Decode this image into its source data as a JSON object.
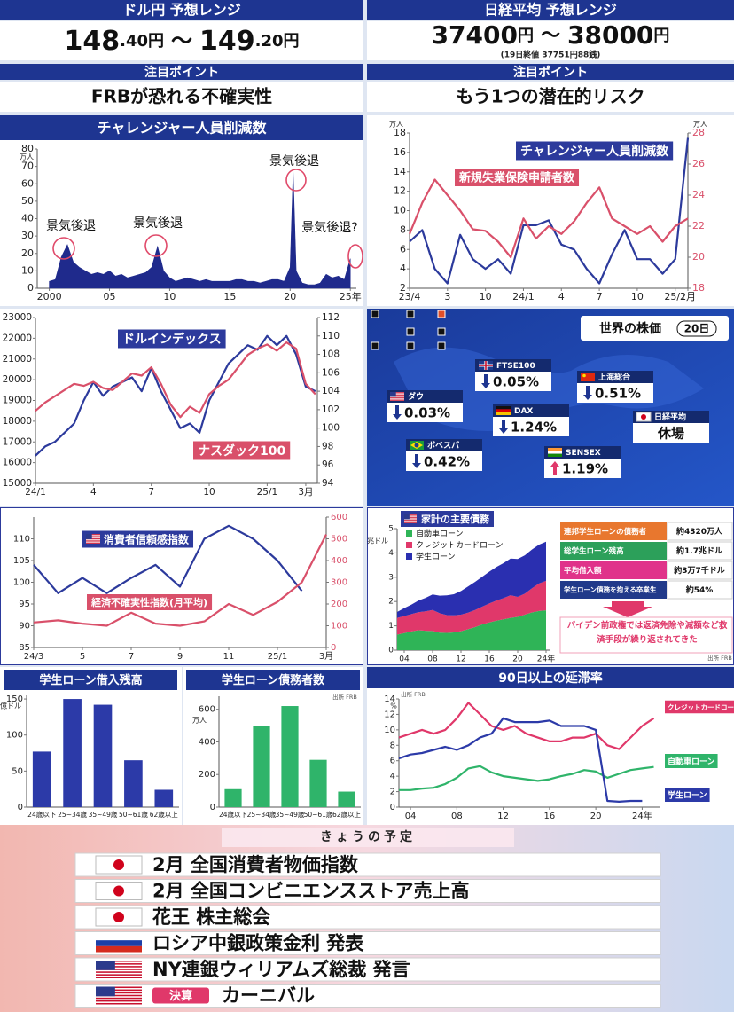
{
  "usdjpy": {
    "title": "ドル円 予想レンジ",
    "low": "148",
    "low_dec": ".40円",
    "sep": "～",
    "high": "149",
    "high_dec": ".20円"
  },
  "nikkei": {
    "title": "日経平均 予想レンジ",
    "low": "37400",
    "low_unit": "円",
    "sep": "～",
    "high": "38000",
    "high_unit": "円",
    "note": "(19日終値 37751円88銭)"
  },
  "points": [
    {
      "label": "注目ポイント",
      "text": "FRBが恐れる不確実性"
    },
    {
      "label": "注目ポイント",
      "text": "もう1つの潜在的リスク"
    }
  ],
  "world_stocks": {
    "title": "世界の株価",
    "date": "20日",
    "items": [
      {
        "name": "ダウ",
        "flag": "us",
        "change": "0.03%",
        "dir": "down"
      },
      {
        "name": "FTSE100",
        "flag": "uk",
        "change": "0.05%",
        "dir": "down"
      },
      {
        "name": "上海総合",
        "flag": "cn",
        "change": "0.51%",
        "dir": "down"
      },
      {
        "name": "DAX",
        "flag": "de",
        "change": "1.24%",
        "dir": "down"
      },
      {
        "name": "日経平均",
        "flag": "jp",
        "change": "休場"
      },
      {
        "name": "ボベスパ",
        "flag": "br",
        "change": "0.42%",
        "dir": "down"
      },
      {
        "name": "SENSEX",
        "flag": "in",
        "change": "1.19%",
        "dir": "up"
      }
    ]
  },
  "debt_table": {
    "rows": [
      [
        "連邦学生ローンの債務者",
        "約4320万人"
      ],
      [
        "総学生ローン残高",
        "約1.7兆ドル"
      ],
      [
        "平均借入額",
        "約3万7千ドル"
      ],
      [
        "学生ローン債務を抱える卒業生",
        "約54%"
      ]
    ],
    "note": "バイデン前政権では返済免除や減額など救済手段が繰り返されてきた"
  },
  "schedule": {
    "title": "きょうの予定",
    "items": [
      {
        "flag": "jp",
        "text": "2月 全国消費者物価指数"
      },
      {
        "flag": "jp",
        "text": "2月 全国コンビニエンスストア売上高"
      },
      {
        "flag": "jp",
        "text": "花王 株主総会"
      },
      {
        "flag": "ru",
        "text": "ロシア中銀政策金利 発表"
      },
      {
        "flag": "us",
        "text": "NY連銀ウィリアムズ総裁 発言"
      },
      {
        "flag": "us",
        "badge": "決算",
        "text": "カーニバル"
      }
    ]
  },
  "chart_data": [
    {
      "type": "area",
      "title": "チャレンジャー人員削減数",
      "yunit": "万人",
      "color": "#1f2a8c",
      "grid": false,
      "annotations": [
        "景気後退",
        "景気後退",
        "景気後退",
        "景気後退?"
      ],
      "x": [
        2000,
        2000.5,
        2001,
        2001.5,
        2002,
        2002.5,
        2003,
        2003.5,
        2004,
        2004.5,
        2005,
        2005.5,
        2006,
        2006.5,
        2007,
        2007.5,
        2008,
        2008.5,
        2009,
        2009.5,
        2010,
        2010.5,
        2011,
        2011.5,
        2012,
        2012.5,
        2013,
        2013.5,
        2014,
        2014.5,
        2015,
        2015.5,
        2016,
        2016.5,
        2017,
        2017.5,
        2018,
        2018.5,
        2019,
        2019.5,
        2020,
        2020.25,
        2020.5,
        2021,
        2021.5,
        2022,
        2022.5,
        2023,
        2023.5,
        2024,
        2024.5,
        2025
      ],
      "values": [
        4,
        5,
        18,
        25,
        15,
        12,
        10,
        8,
        9,
        8,
        10,
        7,
        8,
        6,
        7,
        8,
        9,
        12,
        24,
        10,
        6,
        4,
        5,
        6,
        5,
        4,
        5,
        4,
        4,
        4,
        4,
        5,
        5,
        4,
        4,
        3,
        4,
        5,
        5,
        4,
        12,
        67,
        10,
        3,
        2,
        2,
        3,
        8,
        6,
        7,
        5,
        17
      ],
      "xlim": [
        1999,
        2025.5
      ],
      "xticks": [
        2000,
        {
          "value": 2005,
          "label": "05"
        },
        {
          "value": 2010,
          "label": "10"
        },
        {
          "value": 2015,
          "label": "15"
        },
        {
          "value": 2020,
          "label": "20"
        },
        {
          "value": 2025,
          "label": "25年"
        }
      ],
      "ylim": [
        0,
        80
      ],
      "yticks": [
        0,
        10,
        20,
        30,
        40,
        50,
        60,
        70,
        80
      ]
    },
    {
      "type": "line",
      "yunit": "万人",
      "y2unit": "万人",
      "grid": false,
      "x": [
        0,
        1,
        2,
        3,
        4,
        5,
        6,
        7,
        8,
        9,
        10,
        11,
        12,
        13,
        14,
        15,
        16,
        17,
        18,
        19,
        20,
        21,
        22
      ],
      "series": [
        {
          "name": "チャレンジャー人員削減数",
          "color": "#2c3a9c",
          "values": [
            6.8,
            8,
            4,
            2.5,
            7.5,
            5,
            4,
            5,
            3.5,
            8.5,
            8.5,
            9,
            6.5,
            6,
            4,
            2.5,
            5.5,
            8,
            5,
            5,
            3.5,
            5,
            17.5
          ]
        },
        {
          "name": "新規失業保険申請者数",
          "color": "#d9506a",
          "axis": "y2",
          "values": [
            21.5,
            23.5,
            25,
            24,
            23,
            21.8,
            21.7,
            21,
            20,
            22.5,
            21.2,
            22,
            21.5,
            22.3,
            23.5,
            24.5,
            22.5,
            22,
            21.5,
            22,
            21,
            22,
            22.5
          ]
        }
      ],
      "xlim": [
        0,
        22
      ],
      "xticks": [
        {
          "value": 0,
          "label": "23/4"
        },
        3,
        {
          "value": 6,
          "label": "10"
        },
        {
          "value": 9,
          "label": "24/1"
        },
        {
          "value": 12,
          "label": "4"
        },
        {
          "value": 15,
          "label": "7"
        },
        {
          "value": 18,
          "label": "10"
        },
        {
          "value": 21,
          "label": "25/1"
        },
        {
          "value": 22,
          "label": "2月"
        }
      ],
      "ylim": [
        2,
        18
      ],
      "yticks": [
        2,
        4,
        6,
        8,
        10,
        12,
        14,
        16,
        18
      ],
      "y2lim": [
        18,
        28
      ],
      "y2ticks": [
        18,
        20,
        22,
        24,
        26,
        28
      ]
    },
    {
      "type": "line",
      "grid": false,
      "x": [
        0,
        0.5,
        1,
        1.5,
        2,
        2.5,
        3,
        3.5,
        4,
        4.5,
        5,
        5.5,
        6,
        6.5,
        7,
        7.5,
        8,
        8.5,
        9,
        9.5,
        10,
        10.5,
        11,
        11.5,
        12,
        12.5,
        13,
        13.5,
        14,
        14.5
      ],
      "series": [
        {
          "name": "ドルインデックス",
          "color": "#2c3a9c",
          "axis": "y2",
          "values": [
            97,
            98,
            98.5,
            99.5,
            100.5,
            103,
            105,
            103.5,
            104.5,
            105,
            105.5,
            104,
            106.5,
            104,
            102,
            100,
            100.5,
            99.5,
            103,
            105,
            107,
            108,
            109,
            108.5,
            110,
            109,
            110,
            108,
            104.5,
            104
          ]
        },
        {
          "name": "ナスダック100",
          "color": "#d9506a",
          "values": [
            18500,
            18900,
            19200,
            19500,
            19800,
            19700,
            19900,
            19600,
            19500,
            19900,
            20300,
            20200,
            20600,
            19800,
            18800,
            18200,
            18700,
            18400,
            19300,
            19700,
            20000,
            20600,
            21200,
            21500,
            21700,
            21400,
            21800,
            21500,
            19800,
            19300
          ]
        }
      ],
      "xlim": [
        0,
        14.6
      ],
      "xticks": [
        {
          "value": 0,
          "label": "24/1"
        },
        {
          "value": 3,
          "label": "4"
        },
        {
          "value": 6,
          "label": "7"
        },
        {
          "value": 9,
          "label": "10"
        },
        {
          "value": 12,
          "label": "25/1"
        },
        {
          "value": 14,
          "label": "3月"
        }
      ],
      "ylim": [
        15000,
        23000
      ],
      "yticks": [
        15000,
        16000,
        17000,
        18000,
        19000,
        20000,
        21000,
        22000,
        23000
      ],
      "y2lim": [
        94,
        112
      ],
      "y2ticks": [
        94,
        96,
        98,
        100,
        102,
        104,
        106,
        108,
        110,
        112
      ]
    },
    {
      "type": "line",
      "grid": false,
      "x": [
        0,
        1,
        2,
        3,
        4,
        5,
        6,
        7,
        8,
        9,
        10,
        11,
        12
      ],
      "series": [
        {
          "name": "消費者信頼感指数",
          "color": "#2c3a9c",
          "values": [
            104,
            97.5,
            101,
            97.5,
            101,
            104,
            99,
            110,
            113,
            110,
            105,
            98,
            null
          ]
        },
        {
          "name": "経済不確実性指数(月平均)",
          "color": "#d9506a",
          "axis": "y2",
          "values": [
            115,
            125,
            110,
            100,
            160,
            110,
            100,
            120,
            200,
            150,
            210,
            300,
            520
          ]
        }
      ],
      "xlim": [
        0,
        12
      ],
      "xticks": [
        {
          "value": 0,
          "label": "24/3"
        },
        {
          "value": 2,
          "label": "5"
        },
        {
          "value": 4,
          "label": "7"
        },
        {
          "value": 6,
          "label": "9"
        },
        {
          "value": 8,
          "label": "11"
        },
        {
          "value": 10,
          "label": "25/1"
        },
        {
          "value": 12,
          "label": "3月"
        }
      ],
      "ylim": [
        85,
        115
      ],
      "yticks": [
        85,
        90,
        95,
        100,
        105,
        110
      ],
      "y2lim": [
        0,
        600
      ],
      "y2ticks": [
        0,
        100,
        200,
        300,
        400,
        500,
        600
      ]
    },
    {
      "type": "stacked_area",
      "title": "家計の主要債務",
      "yunit": "兆ドル",
      "source": "出所 FRB",
      "grid": false,
      "x": [
        2003,
        2004,
        2005,
        2006,
        2007,
        2008,
        2009,
        2010,
        2011,
        2012,
        2013,
        2014,
        2015,
        2016,
        2017,
        2018,
        2019,
        2020,
        2021,
        2022,
        2023,
        2024
      ],
      "series": [
        {
          "name": "自動車ローン",
          "color": "#2fb457",
          "values": [
            0.64,
            0.7,
            0.77,
            0.82,
            0.8,
            0.79,
            0.72,
            0.71,
            0.73,
            0.78,
            0.86,
            0.95,
            1.06,
            1.14,
            1.21,
            1.27,
            1.33,
            1.37,
            1.46,
            1.55,
            1.61,
            1.64
          ]
        },
        {
          "name": "クレジットカードローン",
          "color": "#e0386a",
          "values": [
            0.69,
            0.7,
            0.71,
            0.74,
            0.8,
            0.86,
            0.8,
            0.73,
            0.7,
            0.68,
            0.68,
            0.7,
            0.73,
            0.78,
            0.83,
            0.87,
            0.93,
            0.82,
            0.86,
            0.99,
            1.13,
            1.21
          ]
        },
        {
          "name": "学生ローン",
          "color": "#2a2fb0",
          "values": [
            0.24,
            0.33,
            0.39,
            0.48,
            0.55,
            0.64,
            0.72,
            0.81,
            0.87,
            0.97,
            1.08,
            1.16,
            1.23,
            1.31,
            1.38,
            1.44,
            1.51,
            1.56,
            1.58,
            1.6,
            1.6,
            1.61
          ]
        }
      ],
      "xlim": [
        2003,
        2024.5
      ],
      "xticks": [
        {
          "value": 2004,
          "label": "04"
        },
        {
          "value": 2008,
          "label": "08"
        },
        12,
        16,
        20,
        {
          "value": 2024,
          "label": "24年"
        }
      ],
      "ylim": [
        0,
        5
      ],
      "yticks": [
        0,
        1,
        2,
        3,
        4,
        5
      ]
    },
    {
      "type": "bar",
      "title": "学生ローン借入残高",
      "yunit": "億ドル",
      "color": "#2c3aa8",
      "grid": false,
      "categories": [
        "24歳以下",
        "25~34歳",
        "35~49歳",
        "50~61歳",
        "62歳以上"
      ],
      "values": [
        77,
        150,
        142,
        65,
        24
      ],
      "ylim": [
        0,
        155
      ],
      "yticks": [
        0,
        50,
        100,
        150
      ]
    },
    {
      "type": "bar",
      "title": "学生ローン債務者数",
      "yunit": "万人",
      "source": "出所 FRB",
      "color": "#2fb46a",
      "grid": false,
      "categories": [
        "24歳以下",
        "25~34歳",
        "35~49歳",
        "50~61歳",
        "62歳以上"
      ],
      "values": [
        110,
        500,
        620,
        290,
        95
      ],
      "ylim": [
        0,
        680
      ],
      "yticks": [
        0,
        200,
        400,
        600
      ]
    },
    {
      "type": "line",
      "title": "90日以上の延滞率",
      "yunit": "%",
      "source": "出所 FRB",
      "grid": false,
      "x": [
        2003,
        2004,
        2005,
        2006,
        2007,
        2008,
        2009,
        2010,
        2011,
        2012,
        2013,
        2014,
        2015,
        2016,
        2017,
        2018,
        2019,
        2020,
        2021,
        2022,
        2023,
        2024,
        2025
      ],
      "series": [
        {
          "name": "クレジットカードローン",
          "color": "#e0386a",
          "values": [
            9,
            9.5,
            10,
            9.5,
            10,
            11.5,
            13.5,
            12,
            10.5,
            10,
            10.5,
            9.5,
            9,
            8.5,
            8.5,
            9,
            9,
            9.5,
            8,
            7.5,
            9,
            10.5,
            11.5
          ]
        },
        {
          "name": "自動車ローン",
          "color": "#2fb46a",
          "values": [
            2.2,
            2.2,
            2.4,
            2.5,
            3,
            3.8,
            5,
            5.3,
            4.5,
            4,
            3.8,
            3.6,
            3.4,
            3.6,
            4,
            4.3,
            4.8,
            4.6,
            3.8,
            4.3,
            4.8,
            5,
            5.2
          ]
        },
        {
          "name": "学生ローン",
          "color": "#2c3aa8",
          "values": [
            6.3,
            6.8,
            7,
            7.4,
            7.8,
            7.4,
            8,
            9,
            9.5,
            11.5,
            11,
            11,
            11,
            11.2,
            10.5,
            10.5,
            10.5,
            10,
            0.8,
            0.7,
            0.8,
            0.8,
            null
          ]
        }
      ],
      "xlim": [
        2003,
        2025.5
      ],
      "xticks": [
        {
          "value": 2004,
          "label": "04"
        },
        {
          "value": 2008,
          "label": "08"
        },
        12,
        16,
        20,
        {
          "value": 2024,
          "label": "24年"
        }
      ],
      "ylim": [
        0,
        14
      ],
      "yticks": [
        0,
        2,
        4,
        6,
        8,
        10,
        12,
        14
      ]
    }
  ]
}
